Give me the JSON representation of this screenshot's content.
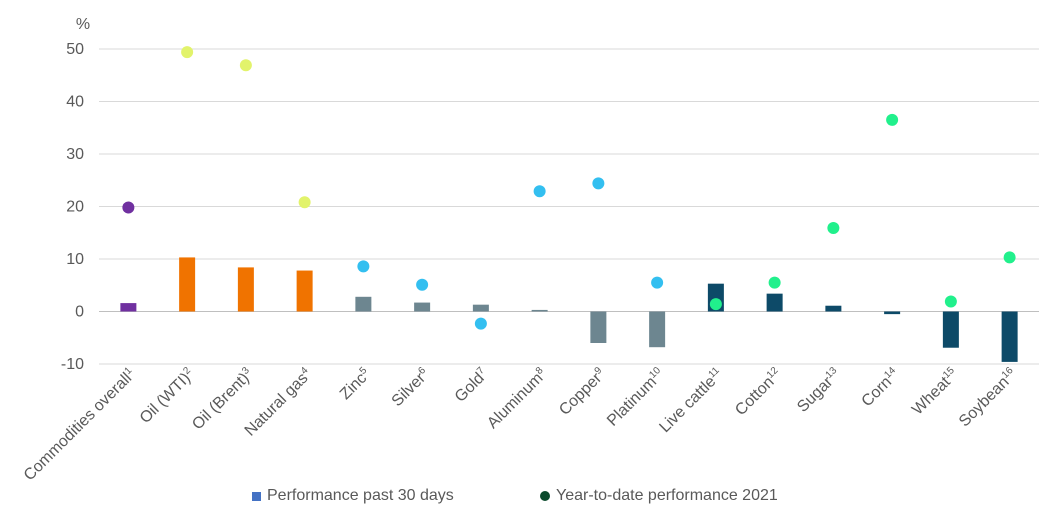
{
  "chart_data": {
    "type": "bar",
    "ylabel": "%",
    "ylim": [
      -10,
      50
    ],
    "yticks": [
      -10,
      0,
      10,
      20,
      30,
      40,
      50
    ],
    "grid": true,
    "legend_position": "bottom",
    "categories": [
      {
        "label": "Commodities overall",
        "sup": "1"
      },
      {
        "label": "Oil (WTI)",
        "sup": "2"
      },
      {
        "label": "Oil (Brent)",
        "sup": "3"
      },
      {
        "label": "Natural gas",
        "sup": "4"
      },
      {
        "label": "Zinc",
        "sup": "5"
      },
      {
        "label": "Silver",
        "sup": "6"
      },
      {
        "label": "Gold",
        "sup": "7"
      },
      {
        "label": "Aluminum",
        "sup": "8"
      },
      {
        "label": "Copper",
        "sup": "9"
      },
      {
        "label": "Platinum",
        "sup": "10"
      },
      {
        "label": "Live cattle",
        "sup": "11"
      },
      {
        "label": "Cotton",
        "sup": "12"
      },
      {
        "label": "Sugar",
        "sup": "13"
      },
      {
        "label": "Corn",
        "sup": "14"
      },
      {
        "label": "Wheat",
        "sup": "15"
      },
      {
        "label": "Soybean",
        "sup": "16"
      }
    ],
    "series": [
      {
        "name": "Performance past 30 days",
        "kind": "bar",
        "legend_color": "#4472c4",
        "values": [
          1.6,
          10.3,
          8.4,
          7.8,
          2.8,
          1.7,
          1.3,
          0.3,
          -6.0,
          -6.8,
          5.3,
          3.4,
          1.1,
          -0.5,
          -6.9,
          -9.6
        ],
        "colors": [
          "#7030a0",
          "#f07300",
          "#f07300",
          "#f07300",
          "#6d8690",
          "#6d8690",
          "#6d8690",
          "#6d8690",
          "#6d8690",
          "#6d8690",
          "#0d4a68",
          "#0d4a68",
          "#0d4a68",
          "#0d4a68",
          "#0d4a68",
          "#0d4a68"
        ]
      },
      {
        "name": "Year-to-date performance 2021",
        "kind": "dot",
        "legend_color": "#0b4a2c",
        "values": [
          19.8,
          49.4,
          46.9,
          20.8,
          8.6,
          5.1,
          -2.3,
          22.9,
          24.4,
          5.5,
          1.4,
          5.5,
          15.9,
          36.5,
          1.9,
          10.3
        ],
        "colors": [
          "#7030a0",
          "#e2f36b",
          "#e2f36b",
          "#e2f36b",
          "#33bff0",
          "#33bff0",
          "#33bff0",
          "#33bff0",
          "#33bff0",
          "#33bff0",
          "#21f08c",
          "#21f08c",
          "#21f08c",
          "#21f08c",
          "#21f08c",
          "#21f08c"
        ]
      }
    ]
  }
}
